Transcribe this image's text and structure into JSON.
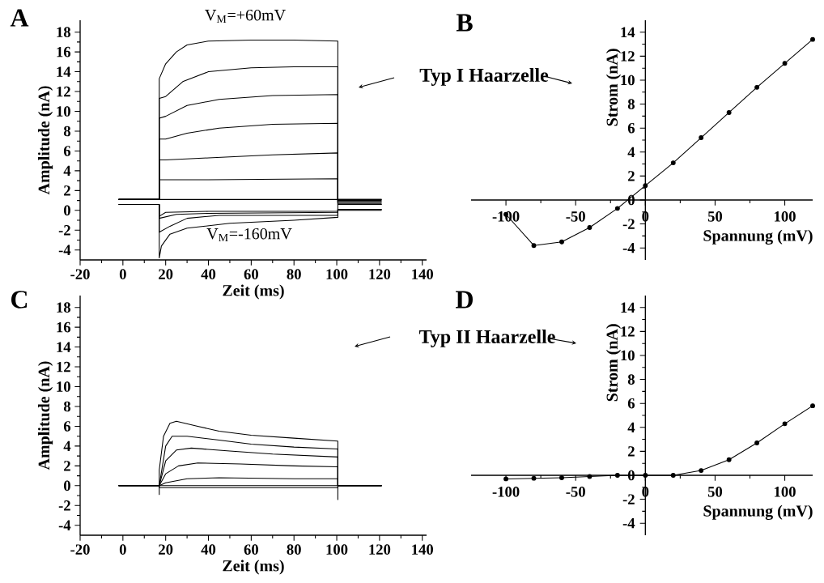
{
  "chart_data": [
    {
      "type": "line",
      "xlabel": "Zeit (ms)",
      "ylabel": "Amplitude (nA)",
      "annotations": [
        "A",
        "V$_{M}$=+60mV",
        "V$_{M}$=-160mV"
      ],
      "xlim": [
        -20,
        142
      ],
      "ylim": [
        -5,
        19.2
      ],
      "xticks": [
        -20,
        0,
        20,
        40,
        60,
        80,
        100,
        120,
        140
      ],
      "yticks": [
        -4,
        -2,
        0,
        2,
        4,
        6,
        8,
        10,
        12,
        14,
        16,
        18
      ],
      "series": [
        {
          "color": "#000000",
          "x": [
            -2,
            17,
            17,
            20,
            25,
            30,
            40,
            60,
            80,
            100.5,
            100.5,
            121
          ],
          "values": [
            1.1,
            1.1,
            13.3,
            14.8,
            16,
            16.7,
            17.1,
            17.2,
            17.2,
            17.1,
            1.1,
            1.1
          ]
        },
        {
          "color": "#000000",
          "x": [
            -2,
            17,
            17,
            20,
            28,
            40,
            60,
            80,
            100.5,
            100.5,
            121
          ],
          "values": [
            1.1,
            1.1,
            11.3,
            11.5,
            13,
            14,
            14.4,
            14.5,
            14.5,
            1.0,
            1.0
          ]
        },
        {
          "color": "#000000",
          "x": [
            -2,
            17,
            17,
            20,
            30,
            45,
            70,
            100.5,
            100.5,
            121
          ],
          "values": [
            1.1,
            1.1,
            9.3,
            9.5,
            10.6,
            11.2,
            11.6,
            11.7,
            0.9,
            0.9
          ]
        },
        {
          "color": "#000000",
          "x": [
            -2,
            17,
            17,
            20,
            30,
            45,
            70,
            100.5,
            100.5,
            121
          ],
          "values": [
            1.1,
            1.1,
            7.2,
            7.2,
            7.8,
            8.3,
            8.7,
            8.8,
            0.8,
            0.8
          ]
        },
        {
          "color": "#000000",
          "x": [
            -2,
            17,
            17,
            20,
            40,
            70,
            100.5,
            100.5,
            121
          ],
          "values": [
            1.1,
            1.1,
            5.1,
            5.1,
            5.3,
            5.6,
            5.8,
            0.7,
            0.7
          ]
        },
        {
          "color": "#000000",
          "x": [
            -2,
            17,
            17,
            40,
            100.5,
            100.5,
            121
          ],
          "values": [
            1.1,
            1.1,
            3.1,
            3.1,
            3.2,
            0.6,
            0.6
          ]
        },
        {
          "color": "#000000",
          "x": [
            -2,
            17,
            100.5,
            121
          ],
          "values": [
            1.1,
            1.1,
            1.1,
            1.1
          ]
        },
        {
          "color": "#000000",
          "x": [
            -2,
            17,
            17,
            20,
            40,
            100.5,
            100.5,
            121
          ],
          "values": [
            0.6,
            0.6,
            -0.6,
            -0.2,
            -0.1,
            -0.1,
            0.6,
            0.6
          ]
        },
        {
          "color": "#000000",
          "x": [
            -2,
            17,
            17,
            25,
            40,
            100.5,
            100.5,
            121
          ],
          "values": [
            0.6,
            0.6,
            -0.8,
            -0.4,
            -0.3,
            -0.2,
            0.1,
            0.1
          ]
        },
        {
          "color": "#000000",
          "x": [
            -2,
            17,
            17,
            22,
            30,
            45,
            100.5,
            100.5,
            121
          ],
          "values": [
            0.6,
            0.6,
            -2.2,
            -1.6,
            -0.8,
            -0.5,
            -0.5,
            0.1,
            0.1
          ]
        },
        {
          "color": "#000000",
          "x": [
            -2,
            17,
            17,
            18,
            22,
            30,
            50,
            80,
            100.5,
            100.5,
            121
          ],
          "values": [
            0.6,
            0.6,
            -4.8,
            -3.6,
            -2.4,
            -1.8,
            -1.3,
            -1.0,
            -0.7,
            0,
            0
          ]
        }
      ]
    },
    {
      "type": "line",
      "xlabel": "Spannung (mV)",
      "ylabel": "Strom (nA)",
      "annotations": [
        "B",
        "Typ I Haarzelle"
      ],
      "marker": "circle",
      "xlim": [
        -125,
        120
      ],
      "ylim": [
        -5,
        15
      ],
      "xticks": [
        -100,
        -50,
        0,
        50,
        100
      ],
      "yticks": [
        -4,
        -2,
        0,
        2,
        4,
        6,
        8,
        10,
        12,
        14
      ],
      "series": [
        {
          "color": "#000000",
          "x": [
            -100,
            -80,
            -60,
            -40,
            -20,
            0,
            20,
            40,
            60,
            80,
            100,
            120
          ],
          "values": [
            -1.2,
            -3.8,
            -3.5,
            -2.3,
            -0.7,
            1.2,
            3.1,
            5.2,
            7.3,
            9.4,
            11.4,
            13.4
          ]
        }
      ]
    },
    {
      "type": "line",
      "xlabel": "Zeit (ms)",
      "ylabel": "Amplitude (nA)",
      "annotations": [
        "C"
      ],
      "xlim": [
        -20,
        142
      ],
      "ylim": [
        -5,
        19.2
      ],
      "xticks": [
        -20,
        0,
        20,
        40,
        60,
        80,
        100,
        120,
        140
      ],
      "yticks": [
        -4,
        -2,
        0,
        2,
        4,
        6,
        8,
        10,
        12,
        14,
        16,
        18
      ],
      "series": [
        {
          "color": "#000000",
          "x": [
            -2,
            17,
            17,
            19,
            22,
            25,
            35,
            45,
            60,
            80,
            100.5,
            100.5,
            121
          ],
          "values": [
            0,
            0,
            1.6,
            5,
            6.3,
            6.5,
            6,
            5.5,
            5.1,
            4.8,
            4.5,
            0,
            0
          ]
        },
        {
          "color": "#000000",
          "x": [
            -2,
            17,
            20,
            23,
            30,
            45,
            60,
            80,
            100.5,
            100.5,
            121
          ],
          "values": [
            0,
            0,
            4,
            5,
            5,
            4.6,
            4.2,
            3.9,
            3.7,
            0,
            0
          ]
        },
        {
          "color": "#000000",
          "x": [
            -2,
            17,
            20,
            25,
            32,
            50,
            70,
            100.5,
            100.5,
            121
          ],
          "values": [
            0,
            0,
            2.5,
            3.6,
            3.8,
            3.5,
            3.2,
            2.9,
            0,
            0
          ]
        },
        {
          "color": "#000000",
          "x": [
            -2,
            17,
            20,
            26,
            35,
            55,
            80,
            100.5,
            100.5,
            121
          ],
          "values": [
            0,
            0,
            1.2,
            2.0,
            2.3,
            2.2,
            2.0,
            1.9,
            0,
            0
          ]
        },
        {
          "color": "#000000",
          "x": [
            -2,
            17,
            20,
            30,
            45,
            80,
            100.5,
            100.5,
            121
          ],
          "values": [
            0,
            0,
            0.3,
            0.7,
            0.8,
            0.7,
            0.7,
            0,
            0
          ]
        },
        {
          "color": "#000000",
          "x": [
            -2,
            17,
            17,
            100.5,
            100.5,
            121
          ],
          "values": [
            0,
            0,
            -0.2,
            -0.2,
            0,
            0
          ]
        },
        {
          "color": "#000000",
          "x": [
            -2,
            17,
            17,
            17,
            100.5,
            100.5,
            100.5,
            121
          ],
          "values": [
            0,
            0,
            -0.9,
            0,
            0,
            -1.4,
            0,
            0
          ]
        }
      ]
    },
    {
      "type": "line",
      "xlabel": "Spannung (mV)",
      "ylabel": "Strom (nA)",
      "annotations": [
        "D",
        "Typ II Haarzelle"
      ],
      "marker": "circle",
      "xlim": [
        -125,
        120
      ],
      "ylim": [
        -5,
        15
      ],
      "xticks": [
        -100,
        -50,
        0,
        50,
        100
      ],
      "yticks": [
        -4,
        -2,
        0,
        2,
        4,
        6,
        8,
        10,
        12,
        14
      ],
      "series": [
        {
          "color": "#000000",
          "x": [
            -100,
            -80,
            -60,
            -40,
            -20,
            0,
            20,
            40,
            60,
            80,
            100,
            120
          ],
          "values": [
            -0.3,
            -0.25,
            -0.2,
            -0.1,
            0,
            0,
            0,
            0.4,
            1.3,
            2.7,
            4.3,
            5.8
          ]
        }
      ]
    }
  ]
}
